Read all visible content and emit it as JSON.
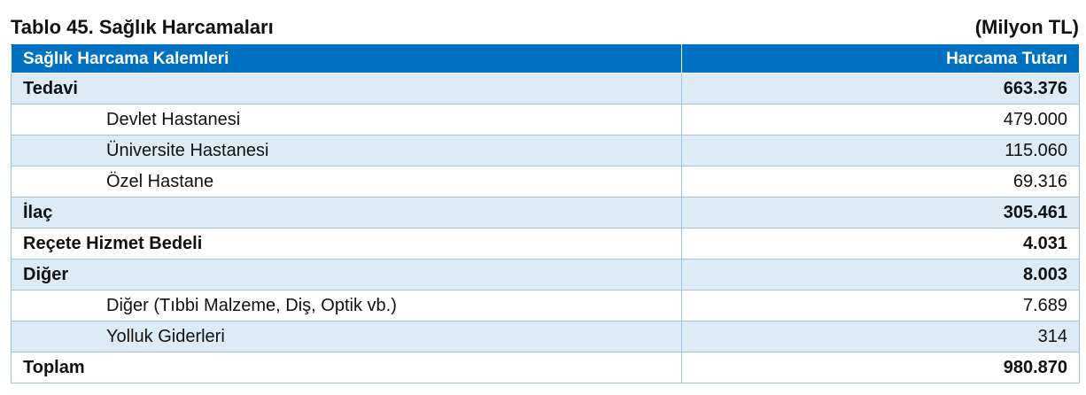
{
  "title": "Tablo 45. Sağlık Harcamaları",
  "unit": "(Milyon TL)",
  "headers": {
    "col1": "Sağlık Harcama Kalemleri",
    "col2": "Harcama Tutarı"
  },
  "rows": [
    {
      "label": "Tedavi",
      "value": "663.376"
    },
    {
      "label": "Devlet Hastanesi",
      "value": "479.000"
    },
    {
      "label": "Üniversite Hastanesi",
      "value": "115.060"
    },
    {
      "label": "Özel Hastane",
      "value": "69.316"
    },
    {
      "label": "İlaç",
      "value": "305.461"
    },
    {
      "label": "Reçete Hizmet Bedeli",
      "value": "4.031"
    },
    {
      "label": "Diğer",
      "value": "8.003"
    },
    {
      "label": "Diğer (Tıbbi Malzeme, Diş, Optik vb.)",
      "value": "7.689"
    },
    {
      "label": "Yolluk Giderleri",
      "value": "314"
    },
    {
      "label": "Toplam",
      "value": "980.870"
    }
  ]
}
